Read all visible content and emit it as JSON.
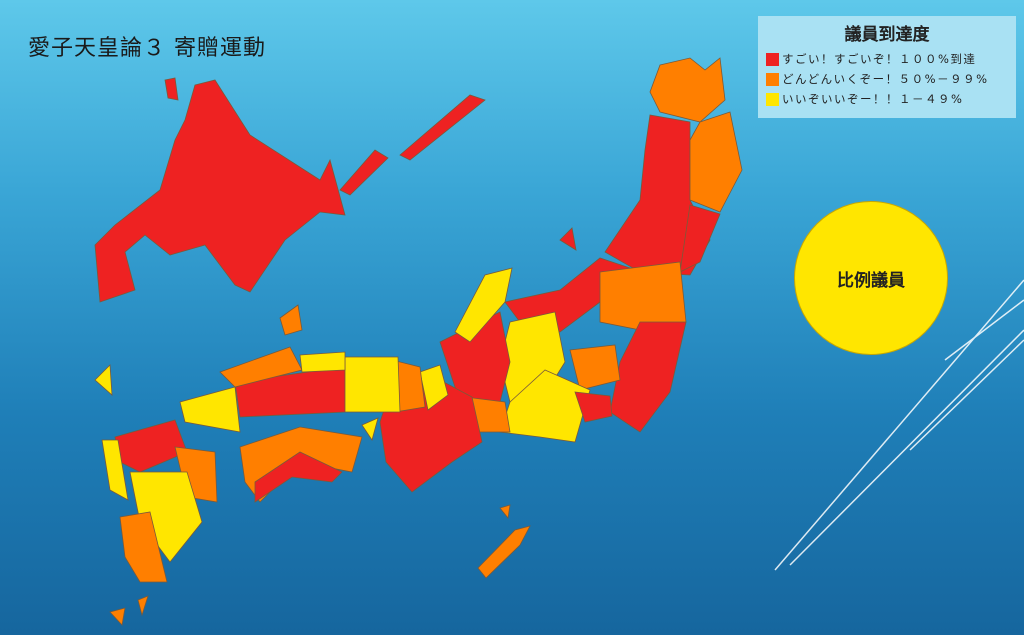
{
  "title": "愛子天皇論３ 寄贈運動",
  "legend": {
    "title": "議員到達度",
    "items": [
      {
        "label": "すごい！すごいぞ！１００%到達",
        "color": "#ee2222"
      },
      {
        "label": "どんどんいくぞー！５０%－９９%",
        "color": "#ff7f00"
      },
      {
        "label": "いいぞいいぞー！！１－４９%",
        "color": "#ffe600"
      }
    ]
  },
  "proportional": {
    "label": "比例議員",
    "color": "#ffe600"
  },
  "colors": {
    "red": "#ee2222",
    "orange": "#ff7f00",
    "yellow": "#ffe600"
  }
}
